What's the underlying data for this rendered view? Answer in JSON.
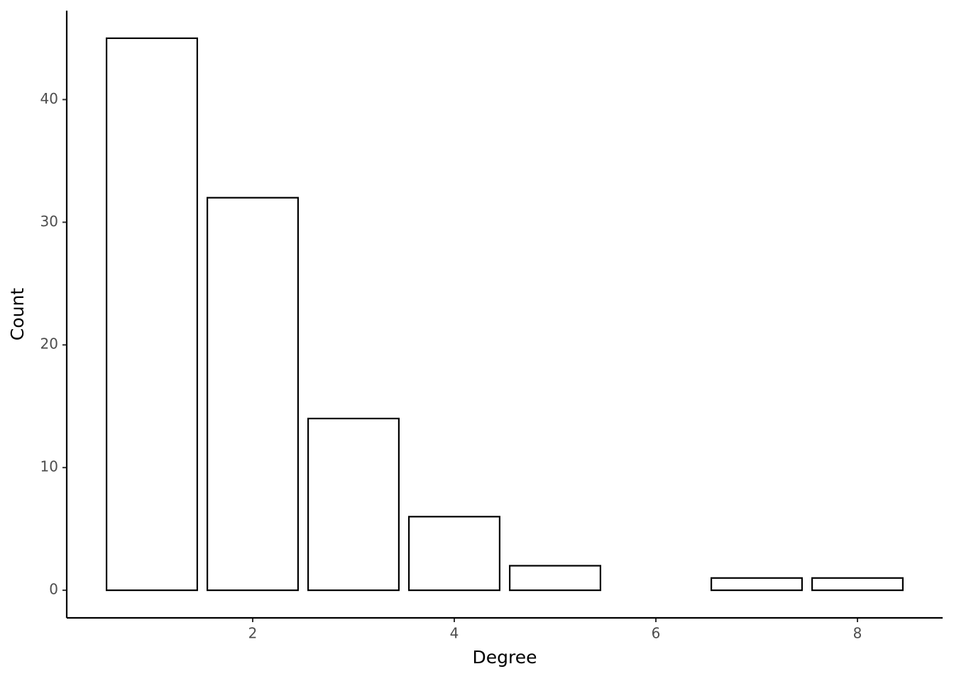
{
  "chart_data": {
    "type": "bar",
    "x_label": "Degree",
    "y_label": "Count",
    "x": [
      1,
      2,
      3,
      4,
      5,
      7,
      8
    ],
    "values": [
      45,
      32,
      14,
      6,
      2,
      1,
      1
    ],
    "color": "#ffffff",
    "edge_color": "#000000",
    "xlim": [
      0.155,
      8.845
    ],
    "xticks": [
      2,
      4,
      6,
      8
    ],
    "ylim": [
      -2.25,
      47.25
    ],
    "yticks": [
      0,
      10,
      20,
      30,
      40
    ],
    "grid": false
  }
}
